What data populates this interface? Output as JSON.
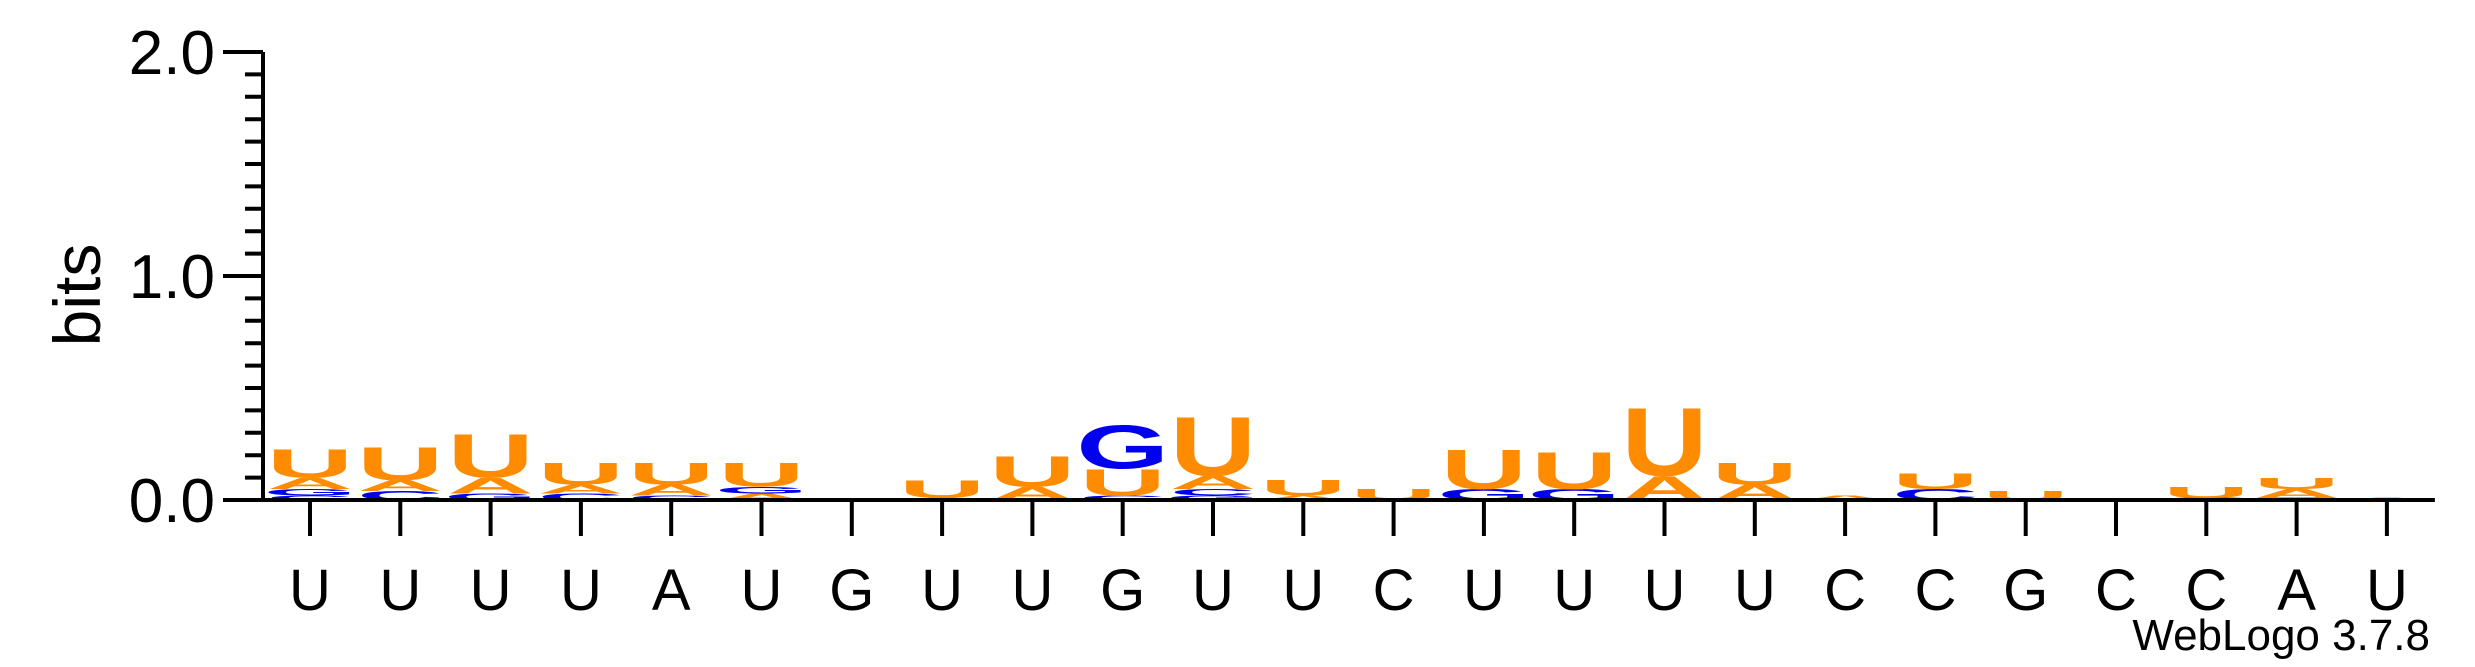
{
  "chart_data": {
    "type": "sequence-logo",
    "ylabel": "bits",
    "ylim": [
      0,
      2.0
    ],
    "yticks": [
      {
        "value": 0,
        "label": "0.0"
      },
      {
        "value": 1,
        "label": "1.0"
      },
      {
        "value": 2,
        "label": "2.0"
      }
    ],
    "positions": [
      "U",
      "U",
      "U",
      "U",
      "A",
      "U",
      "G",
      "U",
      "U",
      "G",
      "U",
      "U",
      "C",
      "U",
      "U",
      "U",
      "U",
      "C",
      "C",
      "G",
      "C",
      "C",
      "A",
      "U"
    ],
    "colors": {
      "U": "#ff8c00",
      "A": "#ff8c00",
      "G": "#0000ee",
      "C": "#0000ee"
    },
    "stacks": [
      [
        {
          "letter": "C",
          "bits": 0.02
        },
        {
          "letter": "G",
          "bits": 0.03
        },
        {
          "letter": "A",
          "bits": 0.05
        },
        {
          "letter": "U",
          "bits": 0.13
        }
      ],
      [
        {
          "letter": "C",
          "bits": 0.04
        },
        {
          "letter": "A",
          "bits": 0.05
        },
        {
          "letter": "U",
          "bits": 0.15
        }
      ],
      [
        {
          "letter": "G",
          "bits": 0.03
        },
        {
          "letter": "A",
          "bits": 0.07
        },
        {
          "letter": "U",
          "bits": 0.2
        }
      ],
      [
        {
          "letter": "C",
          "bits": 0.03
        },
        {
          "letter": "A",
          "bits": 0.04
        },
        {
          "letter": "U",
          "bits": 0.1
        }
      ],
      [
        {
          "letter": "C",
          "bits": 0.02
        },
        {
          "letter": "A",
          "bits": 0.05
        },
        {
          "letter": "U",
          "bits": 0.1
        }
      ],
      [
        {
          "letter": "A",
          "bits": 0.03
        },
        {
          "letter": "G",
          "bits": 0.03
        },
        {
          "letter": "U",
          "bits": 0.11
        }
      ],
      [],
      [
        {
          "letter": "A",
          "bits": 0.01
        },
        {
          "letter": "U",
          "bits": 0.08
        }
      ],
      [
        {
          "letter": "A",
          "bits": 0.06
        },
        {
          "letter": "U",
          "bits": 0.14
        }
      ],
      [
        {
          "letter": "C",
          "bits": 0.02
        },
        {
          "letter": "U",
          "bits": 0.12
        },
        {
          "letter": "G",
          "bits": 0.2
        }
      ],
      [
        {
          "letter": "G",
          "bits": 0.02
        },
        {
          "letter": "C",
          "bits": 0.03
        },
        {
          "letter": "A",
          "bits": 0.06
        },
        {
          "letter": "U",
          "bits": 0.27
        }
      ],
      [
        {
          "letter": "A",
          "bits": 0.02
        },
        {
          "letter": "U",
          "bits": 0.07
        }
      ],
      [
        {
          "letter": "U",
          "bits": 0.05
        }
      ],
      [
        {
          "letter": "G",
          "bits": 0.05
        },
        {
          "letter": "U",
          "bits": 0.18
        }
      ],
      [
        {
          "letter": "G",
          "bits": 0.05
        },
        {
          "letter": "U",
          "bits": 0.17
        }
      ],
      [
        {
          "letter": "A",
          "bits": 0.11
        },
        {
          "letter": "U",
          "bits": 0.31
        }
      ],
      [
        {
          "letter": "A",
          "bits": 0.07
        },
        {
          "letter": "U",
          "bits": 0.1
        }
      ],
      [
        {
          "letter": "A",
          "bits": 0.02
        }
      ],
      [
        {
          "letter": "C",
          "bits": 0.05
        },
        {
          "letter": "U",
          "bits": 0.07
        }
      ],
      [
        {
          "letter": "U",
          "bits": 0.04
        }
      ],
      [],
      [
        {
          "letter": "C",
          "bits": 0.01
        },
        {
          "letter": "U",
          "bits": 0.05
        }
      ],
      [
        {
          "letter": "C",
          "bits": 0.01
        },
        {
          "letter": "A",
          "bits": 0.04
        },
        {
          "letter": "U",
          "bits": 0.05
        }
      ],
      [
        {
          "letter": "A",
          "bits": 0.01
        }
      ]
    ]
  },
  "footer": {
    "credit": "WebLogo 3.7.8"
  }
}
